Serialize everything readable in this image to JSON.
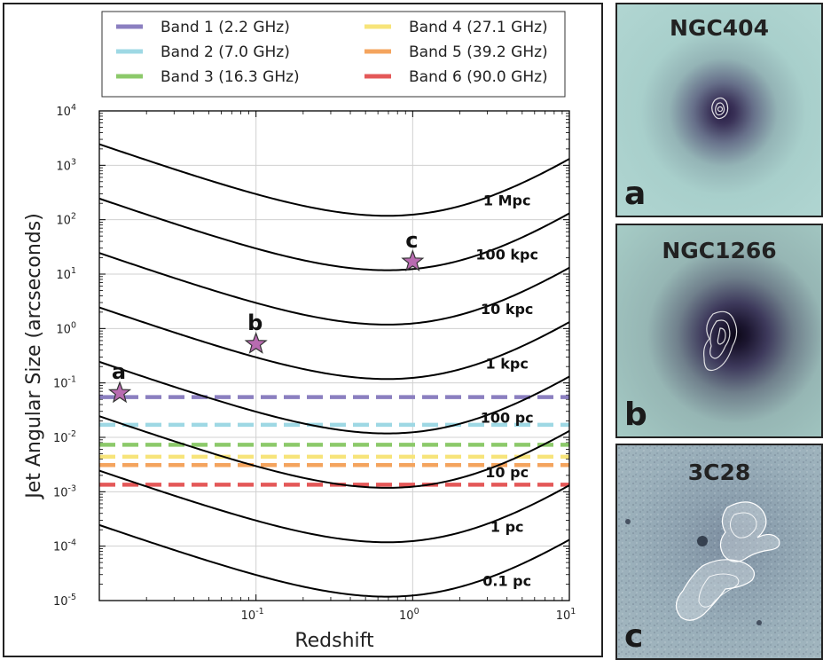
{
  "chart_data": {
    "type": "line",
    "xlabel": "Redshift",
    "ylabel": "Jet Angular Size (arcseconds)",
    "xscale": "log",
    "yscale": "log",
    "xlim": [
      0.01,
      10
    ],
    "ylim": [
      1e-05,
      10000
    ],
    "grid": true,
    "x_ticks": [
      "10",
      "-1",
      "10",
      "0",
      "10",
      "1"
    ],
    "x_tick_labels": [
      {
        "base": "10",
        "exp": "-1",
        "value": 0.1
      },
      {
        "base": "10",
        "exp": "0",
        "value": 1
      },
      {
        "base": "10",
        "exp": "1",
        "value": 10
      }
    ],
    "y_tick_labels": [
      {
        "base": "10",
        "exp": "-5",
        "value": 1e-05
      },
      {
        "base": "10",
        "exp": "-4",
        "value": 0.0001
      },
      {
        "base": "10",
        "exp": "-3",
        "value": 0.001
      },
      {
        "base": "10",
        "exp": "-2",
        "value": 0.01
      },
      {
        "base": "10",
        "exp": "-1",
        "value": 0.1
      },
      {
        "base": "10",
        "exp": "0",
        "value": 1
      },
      {
        "base": "10",
        "exp": "1",
        "value": 10
      },
      {
        "base": "10",
        "exp": "2",
        "value": 100
      },
      {
        "base": "10",
        "exp": "3",
        "value": 1000
      },
      {
        "base": "10",
        "exp": "4",
        "value": 10000
      }
    ],
    "legend_position": "top",
    "bands": [
      {
        "name": "Band 1",
        "freq": "(2.2 GHz)",
        "value": 0.055,
        "color": "#8b7fc0"
      },
      {
        "name": "Band 2",
        "freq": "(7.0 GHz)",
        "value": 0.017,
        "color": "#9ed8e4"
      },
      {
        "name": "Band 3",
        "freq": "(16.3 GHz)",
        "value": 0.0073,
        "color": "#8cc96a"
      },
      {
        "name": "Band 4",
        "freq": "(27.1 GHz)",
        "value": 0.0044,
        "color": "#f7e47a"
      },
      {
        "name": "Band 5",
        "freq": "(39.2 GHz)",
        "value": 0.0031,
        "color": "#f4a45e"
      },
      {
        "name": "Band 6",
        "freq": "(90.0 GHz)",
        "value": 0.00135,
        "color": "#e45858"
      }
    ],
    "size_curves": [
      {
        "label": "1 Mpc",
        "min_value": 118
      },
      {
        "label": "100 kpc",
        "min_value": 11.8
      },
      {
        "label": "10 kpc",
        "min_value": 1.18
      },
      {
        "label": "1 kpc",
        "min_value": 0.118
      },
      {
        "label": "100 pc",
        "min_value": 0.0118
      },
      {
        "label": "10 pc",
        "min_value": 0.00118
      },
      {
        "label": "1 pc",
        "min_value": 0.000118
      },
      {
        "label": "0.1 pc",
        "min_value": 1.18e-05
      }
    ],
    "markers": [
      {
        "label": "a",
        "x": 0.0135,
        "y": 0.065,
        "color": "#b86bb0"
      },
      {
        "label": "b",
        "x": 0.1,
        "y": 0.52,
        "color": "#b86bb0"
      },
      {
        "label": "c",
        "x": 1.0,
        "y": 17,
        "color": "#b86bb0"
      }
    ]
  },
  "images": [
    {
      "title": "NGC404",
      "letter": "a"
    },
    {
      "title": "NGC1266",
      "letter": "b"
    },
    {
      "title": "3C28",
      "letter": "c"
    }
  ]
}
